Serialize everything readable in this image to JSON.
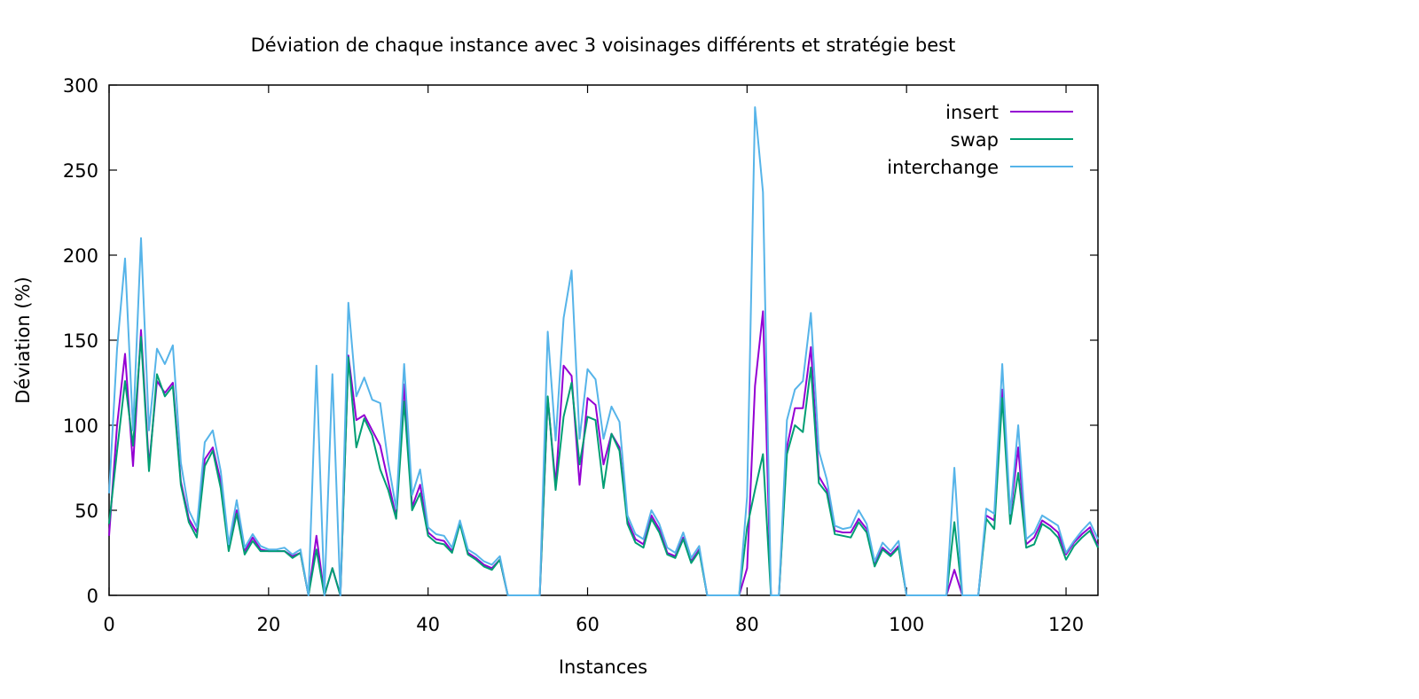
{
  "chart_data": {
    "type": "line",
    "title": "Déviation de chaque instance avec 3 voisinages différents et stratégie best",
    "xlabel": "Instances",
    "ylabel": "Déviation (%)",
    "xlim": [
      0,
      124
    ],
    "ylim": [
      0,
      300
    ],
    "xticks": [
      0,
      20,
      40,
      60,
      80,
      100,
      120
    ],
    "yticks": [
      0,
      50,
      100,
      150,
      200,
      250,
      300
    ],
    "legend_position": "top-right",
    "grid": false,
    "series": [
      {
        "name": "insert",
        "color": "#9400d3",
        "values": [
          35,
          100,
          142,
          76,
          156,
          76,
          126,
          119,
          125,
          67,
          45,
          37,
          80,
          87,
          67,
          28,
          50,
          26,
          34,
          27,
          26,
          26,
          26,
          23,
          25,
          0,
          35,
          0,
          16,
          0,
          141,
          103,
          106,
          97,
          88,
          67,
          46,
          124,
          52,
          65,
          37,
          33,
          32,
          26,
          43,
          25,
          22,
          18,
          16,
          21,
          0,
          0,
          0,
          0,
          0,
          116,
          65,
          135,
          129,
          65,
          116,
          112,
          77,
          95,
          87,
          44,
          33,
          30,
          47,
          39,
          25,
          23,
          34,
          20,
          27,
          0,
          0,
          0,
          0,
          0,
          16,
          123,
          167,
          0,
          0,
          87,
          110,
          110,
          146,
          70,
          62,
          38,
          37,
          37,
          45,
          39,
          19,
          28,
          24,
          29,
          0,
          0,
          0,
          0,
          0,
          0,
          15,
          0,
          0,
          0,
          47,
          44,
          121,
          47,
          87,
          30,
          34,
          44,
          41,
          37,
          24,
          31,
          36,
          40,
          29
        ]
      },
      {
        "name": "swap",
        "color": "#009e73",
        "values": [
          42,
          85,
          126,
          88,
          152,
          73,
          130,
          117,
          123,
          65,
          43,
          34,
          76,
          85,
          63,
          26,
          48,
          24,
          32,
          26,
          26,
          26,
          26,
          22,
          25,
          0,
          27,
          0,
          16,
          0,
          140,
          87,
          104,
          94,
          74,
          62,
          45,
          114,
          50,
          60,
          35,
          31,
          30,
          25,
          42,
          24,
          21,
          17,
          15,
          21,
          0,
          0,
          0,
          0,
          0,
          117,
          62,
          105,
          125,
          77,
          105,
          103,
          63,
          95,
          85,
          42,
          31,
          28,
          45,
          37,
          24,
          22,
          33,
          19,
          26,
          0,
          0,
          0,
          0,
          0,
          40,
          62,
          83,
          0,
          0,
          83,
          100,
          96,
          134,
          66,
          60,
          36,
          35,
          34,
          43,
          37,
          17,
          27,
          23,
          28,
          0,
          0,
          0,
          0,
          0,
          0,
          43,
          0,
          0,
          0,
          45,
          39,
          116,
          42,
          72,
          28,
          30,
          42,
          39,
          34,
          21,
          29,
          34,
          38,
          28
        ]
      },
      {
        "name": "interchange",
        "color": "#56b4e9",
        "values": [
          60,
          145,
          198,
          97,
          210,
          97,
          145,
          136,
          147,
          78,
          50,
          40,
          90,
          97,
          73,
          30,
          56,
          28,
          36,
          29,
          27,
          27,
          28,
          24,
          27,
          0,
          135,
          0,
          130,
          0,
          172,
          117,
          128,
          115,
          113,
          78,
          51,
          136,
          59,
          74,
          40,
          36,
          35,
          28,
          44,
          27,
          24,
          20,
          18,
          23,
          0,
          0,
          0,
          0,
          0,
          155,
          91,
          163,
          191,
          92,
          133,
          127,
          92,
          111,
          102,
          47,
          36,
          33,
          50,
          42,
          28,
          25,
          37,
          22,
          29,
          0,
          0,
          0,
          0,
          0,
          58,
          287,
          237,
          0,
          0,
          103,
          121,
          126,
          166,
          85,
          68,
          41,
          39,
          40,
          50,
          42,
          20,
          31,
          26,
          32,
          0,
          0,
          0,
          0,
          0,
          0,
          75,
          0,
          0,
          0,
          51,
          48,
          136,
          48,
          100,
          33,
          37,
          47,
          44,
          41,
          25,
          32,
          38,
          43,
          33
        ]
      }
    ]
  }
}
